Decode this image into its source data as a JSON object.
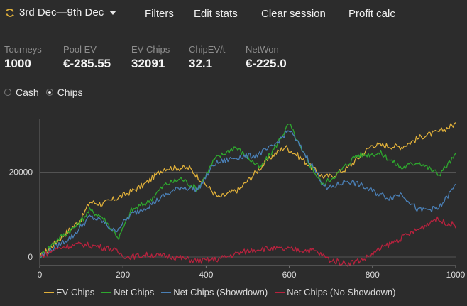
{
  "toolbar": {
    "date_range": "3rd Dec—9th Dec",
    "filters": "Filters",
    "edit_stats": "Edit stats",
    "clear_session": "Clear session",
    "profit_calc": "Profit calc"
  },
  "stats": [
    {
      "label": "Tourneys",
      "value": "1000"
    },
    {
      "label": "Pool EV",
      "value": "€-285.55"
    },
    {
      "label": "EV Chips",
      "value": "32091"
    },
    {
      "label": "ChipEV/t",
      "value": "32.1"
    },
    {
      "label": "NetWon",
      "value": "€-225.0"
    }
  ],
  "mode": {
    "cash": "Cash",
    "chips": "Chips",
    "selected": "Chips"
  },
  "chart_data": {
    "type": "line",
    "x_ticks": [
      "0",
      "200",
      "400",
      "600",
      "800",
      "1000"
    ],
    "y_ticks": [
      "0",
      "20000"
    ],
    "xlim": [
      0,
      1000
    ],
    "ylim": [
      -2000,
      32500
    ],
    "grid": "horizontal",
    "legend_position": "bottom",
    "series": [
      {
        "name": "EV Chips",
        "color": "#e0b03a",
        "points": [
          [
            0,
            0
          ],
          [
            50,
            4500
          ],
          [
            100,
            9000
          ],
          [
            120,
            13000
          ],
          [
            150,
            12500
          ],
          [
            200,
            14500
          ],
          [
            250,
            17000
          ],
          [
            300,
            21000
          ],
          [
            360,
            21000
          ],
          [
            390,
            18000
          ],
          [
            430,
            14000
          ],
          [
            480,
            16000
          ],
          [
            520,
            20000
          ],
          [
            560,
            24000
          ],
          [
            590,
            26000
          ],
          [
            620,
            24000
          ],
          [
            680,
            19000
          ],
          [
            700,
            19000
          ],
          [
            740,
            21000
          ],
          [
            800,
            26500
          ],
          [
            870,
            26000
          ],
          [
            920,
            28500
          ],
          [
            960,
            29500
          ],
          [
            1000,
            31500
          ]
        ]
      },
      {
        "name": "Net Chips",
        "color": "#2ea82e",
        "points": [
          [
            0,
            0
          ],
          [
            40,
            4000
          ],
          [
            90,
            7500
          ],
          [
            120,
            11000
          ],
          [
            150,
            9500
          ],
          [
            190,
            4500
          ],
          [
            220,
            11000
          ],
          [
            260,
            13000
          ],
          [
            300,
            17000
          ],
          [
            340,
            18500
          ],
          [
            380,
            16000
          ],
          [
            420,
            23000
          ],
          [
            470,
            26000
          ],
          [
            530,
            21000
          ],
          [
            560,
            25000
          ],
          [
            600,
            31500
          ],
          [
            630,
            25000
          ],
          [
            680,
            17000
          ],
          [
            720,
            20000
          ],
          [
            760,
            24000
          ],
          [
            820,
            24500
          ],
          [
            870,
            21000
          ],
          [
            910,
            22500
          ],
          [
            960,
            19500
          ],
          [
            1000,
            24000
          ]
        ]
      },
      {
        "name": "Net Chips (Showdown)",
        "color": "#4a7fb5",
        "points": [
          [
            0,
            0
          ],
          [
            40,
            2500
          ],
          [
            80,
            5000
          ],
          [
            120,
            9500
          ],
          [
            150,
            8500
          ],
          [
            180,
            6000
          ],
          [
            220,
            10000
          ],
          [
            260,
            12000
          ],
          [
            300,
            14500
          ],
          [
            340,
            16500
          ],
          [
            380,
            16000
          ],
          [
            420,
            22000
          ],
          [
            470,
            23500
          ],
          [
            520,
            24000
          ],
          [
            560,
            26000
          ],
          [
            600,
            30000
          ],
          [
            640,
            24000
          ],
          [
            690,
            16000
          ],
          [
            740,
            18000
          ],
          [
            770,
            17000
          ],
          [
            800,
            15500
          ],
          [
            840,
            14000
          ],
          [
            870,
            15000
          ],
          [
            910,
            11000
          ],
          [
            960,
            11500
          ],
          [
            1000,
            17000
          ]
        ]
      },
      {
        "name": "Net Chips (No Showdown)",
        "color": "#b8223e",
        "points": [
          [
            0,
            0
          ],
          [
            30,
            1500
          ],
          [
            60,
            2500
          ],
          [
            100,
            3000
          ],
          [
            140,
            2500
          ],
          [
            170,
            2000
          ],
          [
            210,
            0
          ],
          [
            260,
            500
          ],
          [
            320,
            100
          ],
          [
            380,
            -1000
          ],
          [
            430,
            -500
          ],
          [
            480,
            1000
          ],
          [
            530,
            2000
          ],
          [
            600,
            1800
          ],
          [
            660,
            1500
          ],
          [
            700,
            -800
          ],
          [
            740,
            -1500
          ],
          [
            780,
            -500
          ],
          [
            820,
            2000
          ],
          [
            880,
            5000
          ],
          [
            920,
            7000
          ],
          [
            950,
            9000
          ],
          [
            980,
            8000
          ],
          [
            1000,
            7500
          ]
        ]
      }
    ]
  }
}
